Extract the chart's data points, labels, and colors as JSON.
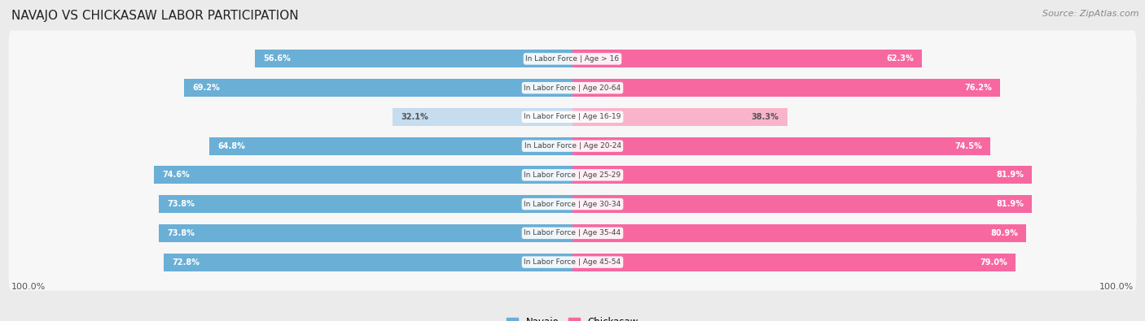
{
  "title": "NAVAJO VS CHICKASAW LABOR PARTICIPATION",
  "source": "Source: ZipAtlas.com",
  "categories": [
    "In Labor Force | Age > 16",
    "In Labor Force | Age 20-64",
    "In Labor Force | Age 16-19",
    "In Labor Force | Age 20-24",
    "In Labor Force | Age 25-29",
    "In Labor Force | Age 30-34",
    "In Labor Force | Age 35-44",
    "In Labor Force | Age 45-54"
  ],
  "navajo": [
    56.6,
    69.2,
    32.1,
    64.8,
    74.6,
    73.8,
    73.8,
    72.8
  ],
  "chickasaw": [
    62.3,
    76.2,
    38.3,
    74.5,
    81.9,
    81.9,
    80.9,
    79.0
  ],
  "navajo_color": "#6aafd6",
  "navajo_light_color": "#c6dcef",
  "chickasaw_color": "#f768a1",
  "chickasaw_light_color": "#f9b4cc",
  "bg_color": "#ebebeb",
  "row_bg_color": "#f7f7f7",
  "row_bg_alt": "#ebebeb",
  "label_color": "#444444",
  "title_color": "#222222",
  "source_color": "#888888",
  "bottom_label_color": "#555555",
  "bar_height": 0.62,
  "legend_navajo": "Navajo",
  "legend_chickasaw": "Chickasaw"
}
